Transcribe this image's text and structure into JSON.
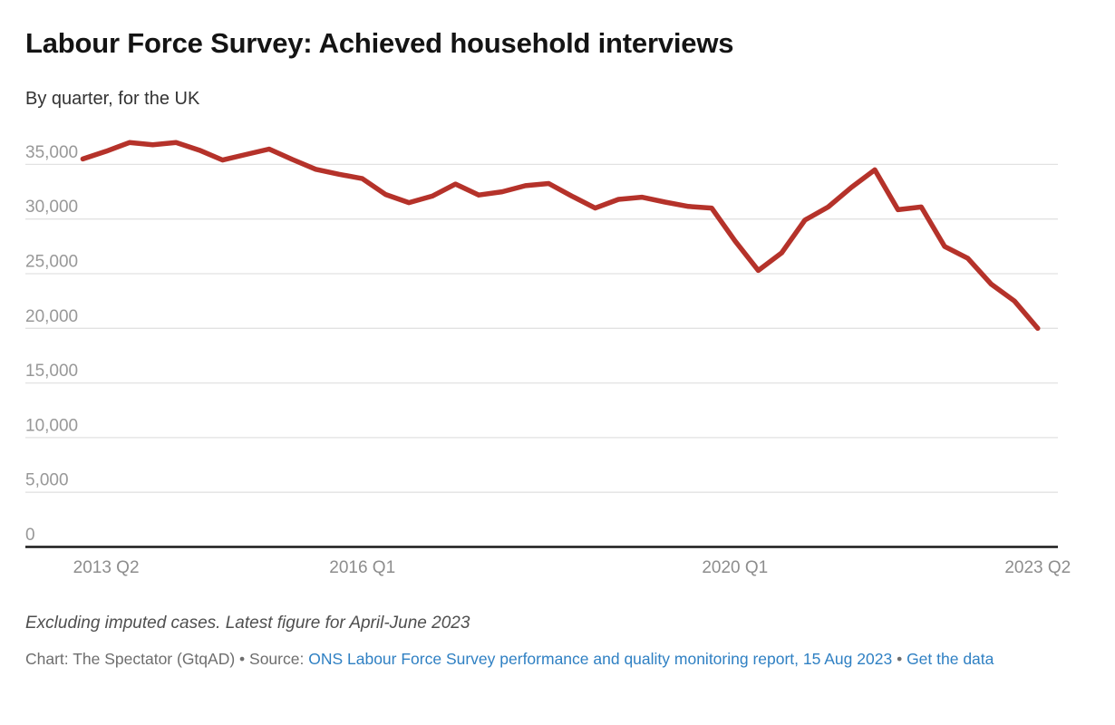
{
  "header": {
    "title": "Labour Force Survey: Achieved household interviews",
    "subtitle": "By quarter, for the UK"
  },
  "footer": {
    "note": "Excluding imputed cases. Latest figure for April-June 2023",
    "byline": "Chart: The Spectator (GtqAD)",
    "separator": " • ",
    "source_label": "Source: ",
    "source_link": "ONS Labour Force Survey performance and quality monitoring report, 15 Aug 2023",
    "get_data_label": "Get the data"
  },
  "chart_data": {
    "type": "line",
    "title": "Labour Force Survey: Achieved household interviews",
    "subtitle": "By quarter, for the UK",
    "x": [
      "2013 Q1",
      "2013 Q2",
      "2013 Q3",
      "2013 Q4",
      "2014 Q1",
      "2014 Q2",
      "2014 Q3",
      "2014 Q4",
      "2015 Q1",
      "2015 Q2",
      "2015 Q3",
      "2015 Q4",
      "2016 Q1",
      "2016 Q2",
      "2016 Q3",
      "2016 Q4",
      "2017 Q1",
      "2017 Q2",
      "2017 Q3",
      "2017 Q4",
      "2018 Q1",
      "2018 Q2",
      "2018 Q3",
      "2018 Q4",
      "2019 Q1",
      "2019 Q2",
      "2019 Q3",
      "2019 Q4",
      "2020 Q1",
      "2020 Q2",
      "2020 Q3",
      "2020 Q4",
      "2021 Q1",
      "2021 Q2",
      "2021 Q3",
      "2021 Q4",
      "2022 Q1",
      "2022 Q2",
      "2022 Q3",
      "2022 Q4",
      "2023 Q1",
      "2023 Q2"
    ],
    "values": [
      35500,
      36200,
      37000,
      36800,
      37000,
      36300,
      35400,
      35900,
      36400,
      35450,
      34550,
      34100,
      33700,
      32250,
      31500,
      32100,
      33200,
      32200,
      32500,
      33050,
      33250,
      32100,
      31000,
      31800,
      32000,
      31550,
      31150,
      31000,
      28000,
      25300,
      26900,
      29900,
      31100,
      32900,
      34500,
      30850,
      31100,
      27500,
      26400,
      24050,
      22500,
      20000
    ],
    "x_ticks": [
      {
        "label": "2013 Q2",
        "index": 1
      },
      {
        "label": "2016 Q1",
        "index": 12
      },
      {
        "label": "2020 Q1",
        "index": 28
      },
      {
        "label": "2023 Q2",
        "index": 41
      }
    ],
    "y_ticks": [
      0,
      5000,
      10000,
      15000,
      20000,
      25000,
      30000,
      35000
    ],
    "ylim": [
      0,
      37600
    ],
    "grid": true,
    "legend": "none",
    "line_color": "#b5322a",
    "grid_color": "#e2e2e2",
    "axis_color": "#1a1a1a",
    "tick_label_color": "#969696"
  }
}
